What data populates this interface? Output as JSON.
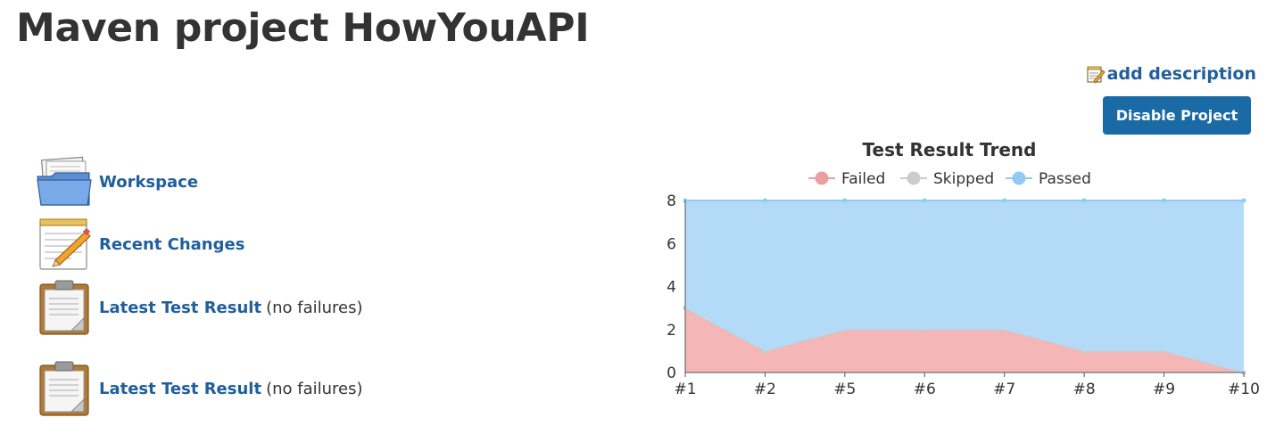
{
  "header": {
    "title": "Maven project HowYouAPI",
    "add_description": "add description",
    "disable_button": "Disable Project"
  },
  "sidebar": {
    "items": [
      {
        "label": "Workspace",
        "suffix": "",
        "icon": "folder-icon"
      },
      {
        "label": "Recent Changes",
        "suffix": "",
        "icon": "notepad-icon"
      },
      {
        "label": "Latest Test Result",
        "suffix": "(no failures)",
        "icon": "clipboard-icon"
      },
      {
        "label": "Latest Test Result",
        "suffix": "(no failures)",
        "icon": "clipboard-icon"
      }
    ]
  },
  "chart_data": {
    "type": "area",
    "title": "Test Result Trend",
    "categories": [
      "#1",
      "#2",
      "#5",
      "#6",
      "#7",
      "#8",
      "#9",
      "#10"
    ],
    "series": [
      {
        "name": "Failed",
        "values": [
          3,
          1,
          2,
          2,
          2,
          1,
          1,
          0
        ],
        "color": "#f4b6b7",
        "line": "#e9a0a2"
      },
      {
        "name": "Skipped",
        "values": [
          0,
          0,
          0,
          0,
          0,
          0,
          0,
          0
        ],
        "color": "#d3d3d3",
        "line": "#cccccc"
      },
      {
        "name": "Passed",
        "values": [
          5,
          7,
          6,
          6,
          6,
          7,
          7,
          8
        ],
        "color": "#b3dbf7",
        "line": "#90caf4"
      }
    ],
    "stacked": true,
    "yticks": [
      0,
      2,
      4,
      6,
      8
    ],
    "ylim": [
      0,
      8
    ],
    "grid": true,
    "legend_position": "top"
  }
}
